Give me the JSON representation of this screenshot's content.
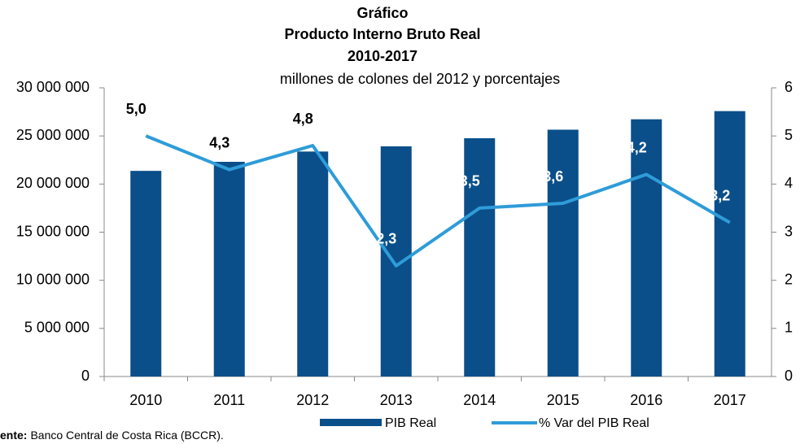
{
  "chart_data": {
    "type": "bar_line",
    "title": [
      "Gráfico",
      "Producto Interno Bruto Real",
      "2010-2017"
    ],
    "subtitle": "millones de colones del 2012 y porcentajes",
    "categories": [
      "2010",
      "2011",
      "2012",
      "2013",
      "2014",
      "2015",
      "2016",
      "2017"
    ],
    "series": [
      {
        "name": "PIB Real",
        "color": "#0a4f8a",
        "values": [
          21370000,
          22310000,
          23380000,
          23920000,
          24760000,
          25650000,
          26730000,
          27580000
        ]
      },
      {
        "name": "% Var del PIB Real",
        "color": "#2e9cd8",
        "axis": "y2",
        "values": [
          5.0,
          4.3,
          4.8,
          2.3,
          3.5,
          3.6,
          4.2,
          3.2
        ],
        "value_labels": [
          "5,0",
          "4,3",
          "4,8",
          "2,3",
          "3,5",
          "3,6",
          "4,2",
          "3,2"
        ]
      }
    ],
    "ylim": [
      0,
      30000000
    ],
    "yticks": [
      0,
      {
        "value": 5000000,
        "label": "5 000 000"
      },
      {
        "value": 10000000,
        "label": "10 000 000"
      },
      {
        "value": 15000000,
        "label": "15 000 000"
      },
      {
        "value": 20000000,
        "label": "20 000 000"
      },
      {
        "value": 25000000,
        "label": "25 000 000"
      },
      {
        "value": 30000000,
        "label": "30 000 000"
      }
    ],
    "y2lim": [
      0,
      6
    ],
    "y2ticks": [
      0,
      1,
      2,
      3,
      4,
      5,
      6
    ],
    "legend": "bottom",
    "source_label": "ente:",
    "source": "Banco Central de Costa Rica (BCCR)."
  }
}
